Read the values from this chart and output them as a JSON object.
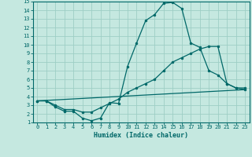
{
  "xlabel": "Humidex (Indice chaleur)",
  "bg_color": "#c5e8e0",
  "grid_color": "#9ecec5",
  "line_color": "#006868",
  "xlim": [
    -0.5,
    23.5
  ],
  "ylim": [
    1,
    15
  ],
  "xticks": [
    0,
    1,
    2,
    3,
    4,
    5,
    6,
    7,
    8,
    9,
    10,
    11,
    12,
    13,
    14,
    15,
    16,
    17,
    18,
    19,
    20,
    21,
    22,
    23
  ],
  "yticks": [
    1,
    2,
    3,
    4,
    5,
    6,
    7,
    8,
    9,
    10,
    11,
    12,
    13,
    14,
    15
  ],
  "series1_x": [
    0,
    1,
    2,
    3,
    4,
    5,
    6,
    7,
    8,
    9,
    10,
    11,
    12,
    13,
    14,
    15,
    16,
    17,
    18,
    19,
    20,
    21,
    22,
    23
  ],
  "series1_y": [
    3.5,
    3.5,
    2.8,
    2.3,
    2.3,
    1.5,
    1.2,
    1.5,
    3.3,
    3.2,
    7.5,
    10.2,
    12.8,
    13.5,
    14.8,
    14.9,
    14.2,
    10.2,
    9.7,
    7.0,
    6.5,
    5.5,
    5.0,
    5.0
  ],
  "series2_x": [
    0,
    1,
    2,
    3,
    4,
    5,
    6,
    7,
    8,
    9,
    10,
    11,
    12,
    13,
    14,
    15,
    16,
    17,
    18,
    19,
    20,
    21,
    22,
    23
  ],
  "series2_y": [
    3.5,
    3.5,
    3.0,
    2.5,
    2.5,
    2.2,
    2.2,
    2.7,
    3.2,
    3.7,
    4.5,
    5.0,
    5.5,
    6.0,
    7.0,
    8.0,
    8.5,
    9.0,
    9.5,
    9.8,
    9.8,
    5.5,
    5.0,
    4.8
  ],
  "series3_x": [
    0,
    23
  ],
  "series3_y": [
    3.5,
    4.8
  ],
  "xlabel_fontsize": 6,
  "tick_fontsize": 5
}
